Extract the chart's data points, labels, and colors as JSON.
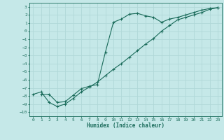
{
  "title": "",
  "xlabel": "Humidex (Indice chaleur)",
  "background_color": "#c5e8e8",
  "grid_color": "#b0d8d8",
  "line_color": "#1a6b5a",
  "xlim": [
    -0.5,
    23.5
  ],
  "ylim": [
    -10.5,
    3.5
  ],
  "xticks": [
    0,
    1,
    2,
    3,
    4,
    5,
    6,
    7,
    8,
    9,
    10,
    11,
    12,
    13,
    14,
    15,
    16,
    17,
    18,
    19,
    20,
    21,
    22,
    23
  ],
  "yticks": [
    3,
    2,
    1,
    0,
    -1,
    -2,
    -3,
    -4,
    -5,
    -6,
    -7,
    -8,
    -9,
    -10
  ],
  "line1_x": [
    1,
    2,
    3,
    4,
    5,
    6,
    7,
    8,
    9,
    10,
    11,
    12,
    13,
    14,
    15,
    16,
    17,
    18,
    19,
    20,
    21,
    22,
    23
  ],
  "line1_y": [
    -7.8,
    -7.8,
    -8.8,
    -8.7,
    -7.9,
    -7.1,
    -6.8,
    -6.6,
    -2.6,
    1.1,
    1.5,
    2.1,
    2.2,
    1.9,
    1.7,
    1.1,
    1.5,
    1.7,
    2.0,
    2.3,
    2.6,
    2.8,
    2.9
  ],
  "line2_x": [
    0,
    1,
    2,
    3,
    4,
    5,
    6,
    7,
    8,
    9,
    10,
    11,
    12,
    13,
    14,
    15,
    16,
    17,
    18,
    19,
    20,
    21,
    22,
    23
  ],
  "line2_y": [
    -7.8,
    -7.5,
    -8.8,
    -9.3,
    -9.0,
    -8.3,
    -7.5,
    -6.9,
    -6.3,
    -5.5,
    -4.7,
    -4.0,
    -3.2,
    -2.4,
    -1.6,
    -0.9,
    0.0,
    0.7,
    1.4,
    1.7,
    2.0,
    2.3,
    2.7,
    2.9
  ]
}
